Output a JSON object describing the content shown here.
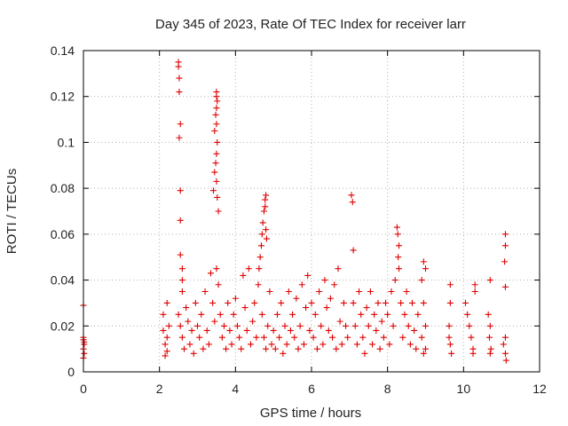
{
  "chart_data": {
    "type": "scatter",
    "title": "Day 345 of 2023, Rate Of TEC Index for receiver larr",
    "xlabel": "GPS time / hours",
    "ylabel": "ROTI / TECUs",
    "xlim": [
      0,
      12
    ],
    "ylim": [
      0,
      0.14
    ],
    "xticks": [
      0,
      2,
      4,
      6,
      8,
      10,
      12
    ],
    "yticks": [
      0,
      0.02,
      0.04,
      0.06,
      0.08,
      0.1,
      0.12,
      0.14
    ],
    "ytick_labels": [
      "0",
      "0.02",
      "0.04",
      "0.06",
      "0.08",
      "0.1",
      "0.12",
      "0.14"
    ],
    "grid": true,
    "marker": "+",
    "color": "#e00000",
    "points": [
      [
        0.0,
        0.029
      ],
      [
        0.0,
        0.014
      ],
      [
        0.02,
        0.012
      ],
      [
        0.0,
        0.01
      ],
      [
        0.02,
        0.008
      ],
      [
        0.0,
        0.006
      ],
      [
        0.02,
        0.013
      ],
      [
        0.0,
        0.015
      ],
      [
        2.1,
        0.025
      ],
      [
        2.1,
        0.018
      ],
      [
        2.15,
        0.012
      ],
      [
        2.2,
        0.009
      ],
      [
        2.2,
        0.03
      ],
      [
        2.25,
        0.02
      ],
      [
        2.2,
        0.015
      ],
      [
        2.15,
        0.007
      ],
      [
        2.5,
        0.135
      ],
      [
        2.5,
        0.133
      ],
      [
        2.52,
        0.128
      ],
      [
        2.52,
        0.122
      ],
      [
        2.55,
        0.108
      ],
      [
        2.52,
        0.102
      ],
      [
        2.55,
        0.079
      ],
      [
        2.55,
        0.066
      ],
      [
        2.55,
        0.051
      ],
      [
        2.6,
        0.045
      ],
      [
        2.6,
        0.04
      ],
      [
        2.6,
        0.035
      ],
      [
        2.5,
        0.025
      ],
      [
        2.55,
        0.02
      ],
      [
        2.6,
        0.015
      ],
      [
        2.65,
        0.01
      ],
      [
        2.7,
        0.028
      ],
      [
        2.75,
        0.022
      ],
      [
        2.8,
        0.012
      ],
      [
        2.85,
        0.018
      ],
      [
        2.9,
        0.008
      ],
      [
        2.95,
        0.03
      ],
      [
        3.0,
        0.02
      ],
      [
        3.05,
        0.015
      ],
      [
        3.1,
        0.025
      ],
      [
        3.15,
        0.01
      ],
      [
        3.2,
        0.035
      ],
      [
        3.25,
        0.018
      ],
      [
        3.3,
        0.012
      ],
      [
        3.35,
        0.043
      ],
      [
        3.4,
        0.03
      ],
      [
        3.45,
        0.022
      ],
      [
        3.5,
        0.122
      ],
      [
        3.5,
        0.12
      ],
      [
        3.52,
        0.118
      ],
      [
        3.5,
        0.115
      ],
      [
        3.48,
        0.112
      ],
      [
        3.5,
        0.108
      ],
      [
        3.45,
        0.105
      ],
      [
        3.52,
        0.1
      ],
      [
        3.5,
        0.095
      ],
      [
        3.48,
        0.091
      ],
      [
        3.45,
        0.087
      ],
      [
        3.5,
        0.083
      ],
      [
        3.42,
        0.079
      ],
      [
        3.52,
        0.076
      ],
      [
        3.55,
        0.07
      ],
      [
        3.5,
        0.045
      ],
      [
        3.55,
        0.038
      ],
      [
        3.6,
        0.025
      ],
      [
        3.65,
        0.015
      ],
      [
        3.7,
        0.02
      ],
      [
        3.75,
        0.01
      ],
      [
        3.8,
        0.03
      ],
      [
        3.85,
        0.018
      ],
      [
        3.9,
        0.012
      ],
      [
        3.95,
        0.025
      ],
      [
        4.0,
        0.032
      ],
      [
        4.05,
        0.02
      ],
      [
        4.1,
        0.015
      ],
      [
        4.15,
        0.01
      ],
      [
        4.2,
        0.042
      ],
      [
        4.25,
        0.028
      ],
      [
        4.3,
        0.018
      ],
      [
        4.35,
        0.045
      ],
      [
        4.4,
        0.012
      ],
      [
        4.45,
        0.022
      ],
      [
        4.5,
        0.03
      ],
      [
        4.55,
        0.015
      ],
      [
        4.6,
        0.038
      ],
      [
        4.62,
        0.045
      ],
      [
        4.65,
        0.05
      ],
      [
        4.68,
        0.055
      ],
      [
        4.7,
        0.06
      ],
      [
        4.72,
        0.065
      ],
      [
        4.75,
        0.07
      ],
      [
        4.78,
        0.075
      ],
      [
        4.8,
        0.077
      ],
      [
        4.78,
        0.072
      ],
      [
        4.8,
        0.062
      ],
      [
        4.82,
        0.058
      ],
      [
        4.7,
        0.025
      ],
      [
        4.75,
        0.015
      ],
      [
        4.8,
        0.01
      ],
      [
        4.85,
        0.02
      ],
      [
        4.9,
        0.035
      ],
      [
        4.95,
        0.012
      ],
      [
        5.0,
        0.018
      ],
      [
        5.05,
        0.01
      ],
      [
        5.1,
        0.025
      ],
      [
        5.15,
        0.015
      ],
      [
        5.2,
        0.03
      ],
      [
        5.25,
        0.008
      ],
      [
        5.3,
        0.02
      ],
      [
        5.35,
        0.012
      ],
      [
        5.4,
        0.035
      ],
      [
        5.45,
        0.018
      ],
      [
        5.5,
        0.025
      ],
      [
        5.55,
        0.015
      ],
      [
        5.6,
        0.032
      ],
      [
        5.65,
        0.01
      ],
      [
        5.7,
        0.02
      ],
      [
        5.75,
        0.038
      ],
      [
        5.8,
        0.012
      ],
      [
        5.85,
        0.028
      ],
      [
        5.9,
        0.042
      ],
      [
        5.95,
        0.018
      ],
      [
        6.0,
        0.03
      ],
      [
        6.05,
        0.015
      ],
      [
        6.1,
        0.025
      ],
      [
        6.15,
        0.01
      ],
      [
        6.2,
        0.035
      ],
      [
        6.25,
        0.02
      ],
      [
        6.3,
        0.012
      ],
      [
        6.35,
        0.04
      ],
      [
        6.4,
        0.028
      ],
      [
        6.45,
        0.018
      ],
      [
        6.5,
        0.032
      ],
      [
        6.55,
        0.015
      ],
      [
        6.6,
        0.038
      ],
      [
        6.65,
        0.01
      ],
      [
        6.7,
        0.045
      ],
      [
        6.75,
        0.022
      ],
      [
        6.8,
        0.012
      ],
      [
        6.85,
        0.03
      ],
      [
        6.9,
        0.02
      ],
      [
        6.95,
        0.015
      ],
      [
        7.05,
        0.077
      ],
      [
        7.08,
        0.074
      ],
      [
        7.1,
        0.053
      ],
      [
        7.1,
        0.03
      ],
      [
        7.15,
        0.02
      ],
      [
        7.2,
        0.012
      ],
      [
        7.25,
        0.035
      ],
      [
        7.3,
        0.025
      ],
      [
        7.35,
        0.015
      ],
      [
        7.4,
        0.008
      ],
      [
        7.45,
        0.028
      ],
      [
        7.5,
        0.02
      ],
      [
        7.55,
        0.035
      ],
      [
        7.6,
        0.012
      ],
      [
        7.65,
        0.025
      ],
      [
        7.7,
        0.018
      ],
      [
        7.75,
        0.03
      ],
      [
        7.8,
        0.01
      ],
      [
        7.85,
        0.022
      ],
      [
        7.9,
        0.015
      ],
      [
        7.95,
        0.03
      ],
      [
        8.0,
        0.025
      ],
      [
        8.05,
        0.012
      ],
      [
        8.1,
        0.035
      ],
      [
        8.15,
        0.02
      ],
      [
        8.2,
        0.04
      ],
      [
        8.25,
        0.063
      ],
      [
        8.27,
        0.06
      ],
      [
        8.3,
        0.055
      ],
      [
        8.28,
        0.05
      ],
      [
        8.3,
        0.045
      ],
      [
        8.35,
        0.03
      ],
      [
        8.4,
        0.015
      ],
      [
        8.45,
        0.025
      ],
      [
        8.5,
        0.035
      ],
      [
        8.55,
        0.02
      ],
      [
        8.6,
        0.012
      ],
      [
        8.65,
        0.03
      ],
      [
        8.7,
        0.018
      ],
      [
        8.75,
        0.01
      ],
      [
        8.8,
        0.025
      ],
      [
        8.9,
        0.04
      ],
      [
        8.95,
        0.048
      ],
      [
        9.0,
        0.045
      ],
      [
        8.95,
        0.03
      ],
      [
        9.0,
        0.02
      ],
      [
        8.9,
        0.015
      ],
      [
        9.0,
        0.01
      ],
      [
        8.95,
        0.008
      ],
      [
        9.65,
        0.038
      ],
      [
        9.65,
        0.03
      ],
      [
        9.62,
        0.02
      ],
      [
        9.65,
        0.012
      ],
      [
        9.68,
        0.008
      ],
      [
        9.62,
        0.015
      ],
      [
        10.05,
        0.03
      ],
      [
        10.1,
        0.025
      ],
      [
        10.15,
        0.02
      ],
      [
        10.2,
        0.015
      ],
      [
        10.25,
        0.01
      ],
      [
        10.3,
        0.038
      ],
      [
        10.3,
        0.035
      ],
      [
        10.25,
        0.008
      ],
      [
        10.7,
        0.04
      ],
      [
        10.65,
        0.025
      ],
      [
        10.7,
        0.02
      ],
      [
        10.68,
        0.015
      ],
      [
        10.72,
        0.01
      ],
      [
        10.7,
        0.008
      ],
      [
        11.1,
        0.06
      ],
      [
        11.1,
        0.055
      ],
      [
        11.08,
        0.048
      ],
      [
        11.1,
        0.037
      ],
      [
        11.1,
        0.015
      ],
      [
        11.05,
        0.012
      ],
      [
        11.1,
        0.008
      ],
      [
        11.12,
        0.005
      ]
    ]
  }
}
